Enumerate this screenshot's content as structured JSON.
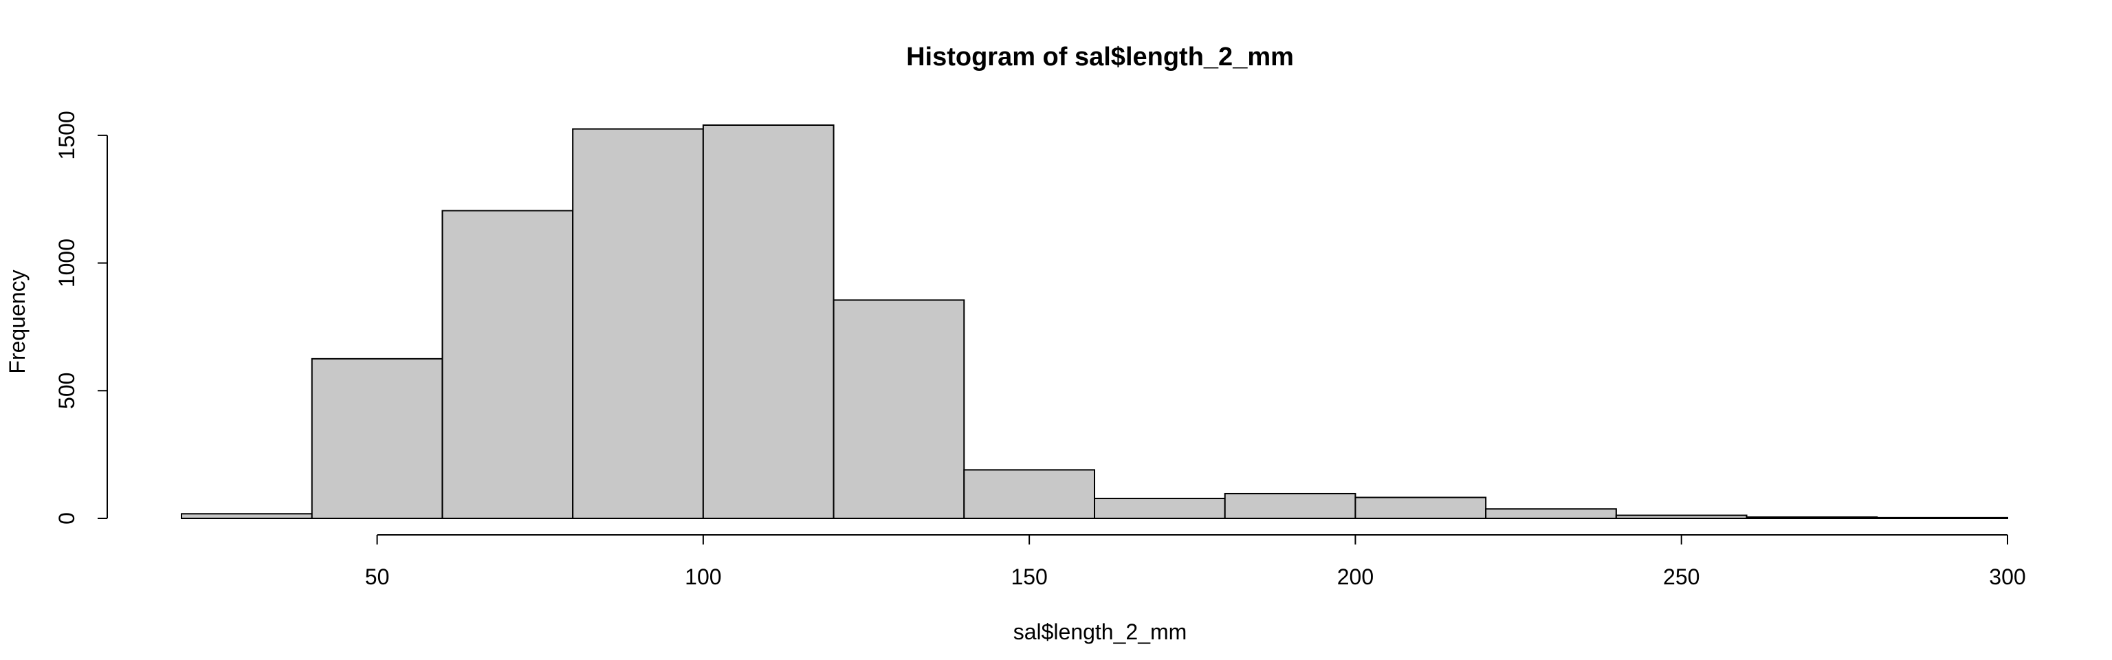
{
  "chart_data": {
    "type": "bar",
    "title": "Histogram of sal$length_2_mm",
    "xlabel": "sal$length_2_mm",
    "ylabel": "Frequency",
    "bin_edges": [
      20,
      40,
      60,
      80,
      100,
      120,
      140,
      160,
      180,
      200,
      220,
      240,
      260,
      280,
      300
    ],
    "values": [
      18,
      625,
      1205,
      1525,
      1540,
      855,
      190,
      78,
      97,
      82,
      37,
      12,
      5,
      3
    ],
    "xlim": [
      20,
      300
    ],
    "ylim": [
      0,
      1540
    ],
    "x_ticks": [
      50,
      100,
      150,
      200,
      250,
      300
    ],
    "x_tick_labels": [
      "50",
      "100",
      "150",
      "200",
      "250",
      "300"
    ],
    "y_ticks": [
      0,
      500,
      1000,
      1500
    ],
    "y_tick_labels": [
      "0",
      "500",
      "1000",
      "1500"
    ],
    "colors": {
      "bar_fill": "#c8c8c8",
      "bar_stroke": "#000000",
      "axis": "#000000"
    },
    "grid": false,
    "legend": "none"
  }
}
